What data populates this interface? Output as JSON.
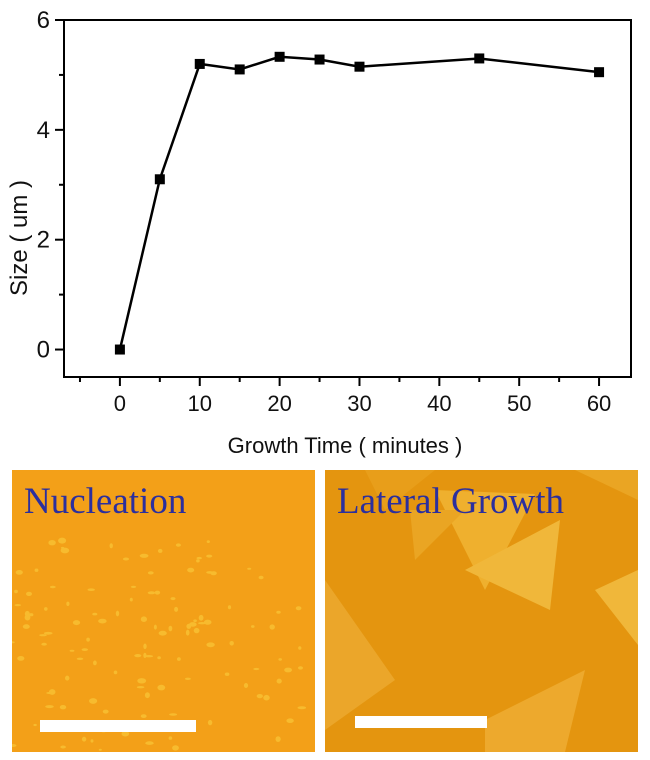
{
  "chart_data": {
    "type": "line",
    "x": [
      0,
      5,
      10,
      15,
      20,
      25,
      30,
      45,
      60
    ],
    "series": [
      {
        "values": [
          0,
          3.1,
          5.2,
          5.1,
          5.33,
          5.28,
          5.15,
          5.3,
          5.05
        ]
      }
    ],
    "xlabel": "Growth Time ( minutes )",
    "ylabel": "Size ( um )",
    "xlim": [
      -7,
      64
    ],
    "ylim": [
      -0.5,
      6
    ],
    "xticks": [
      "0",
      "10",
      "20",
      "30",
      "40",
      "50",
      "60"
    ],
    "yticks": [
      "0",
      "2",
      "4",
      "6"
    ],
    "marker": "square",
    "line_color": "#000000",
    "grid": false,
    "legend": false
  },
  "panels": {
    "left": {
      "label": "Nucleation",
      "image_color": "#f3a018"
    },
    "right": {
      "label": "Lateral Growth",
      "image_color": "#e4950f"
    }
  }
}
